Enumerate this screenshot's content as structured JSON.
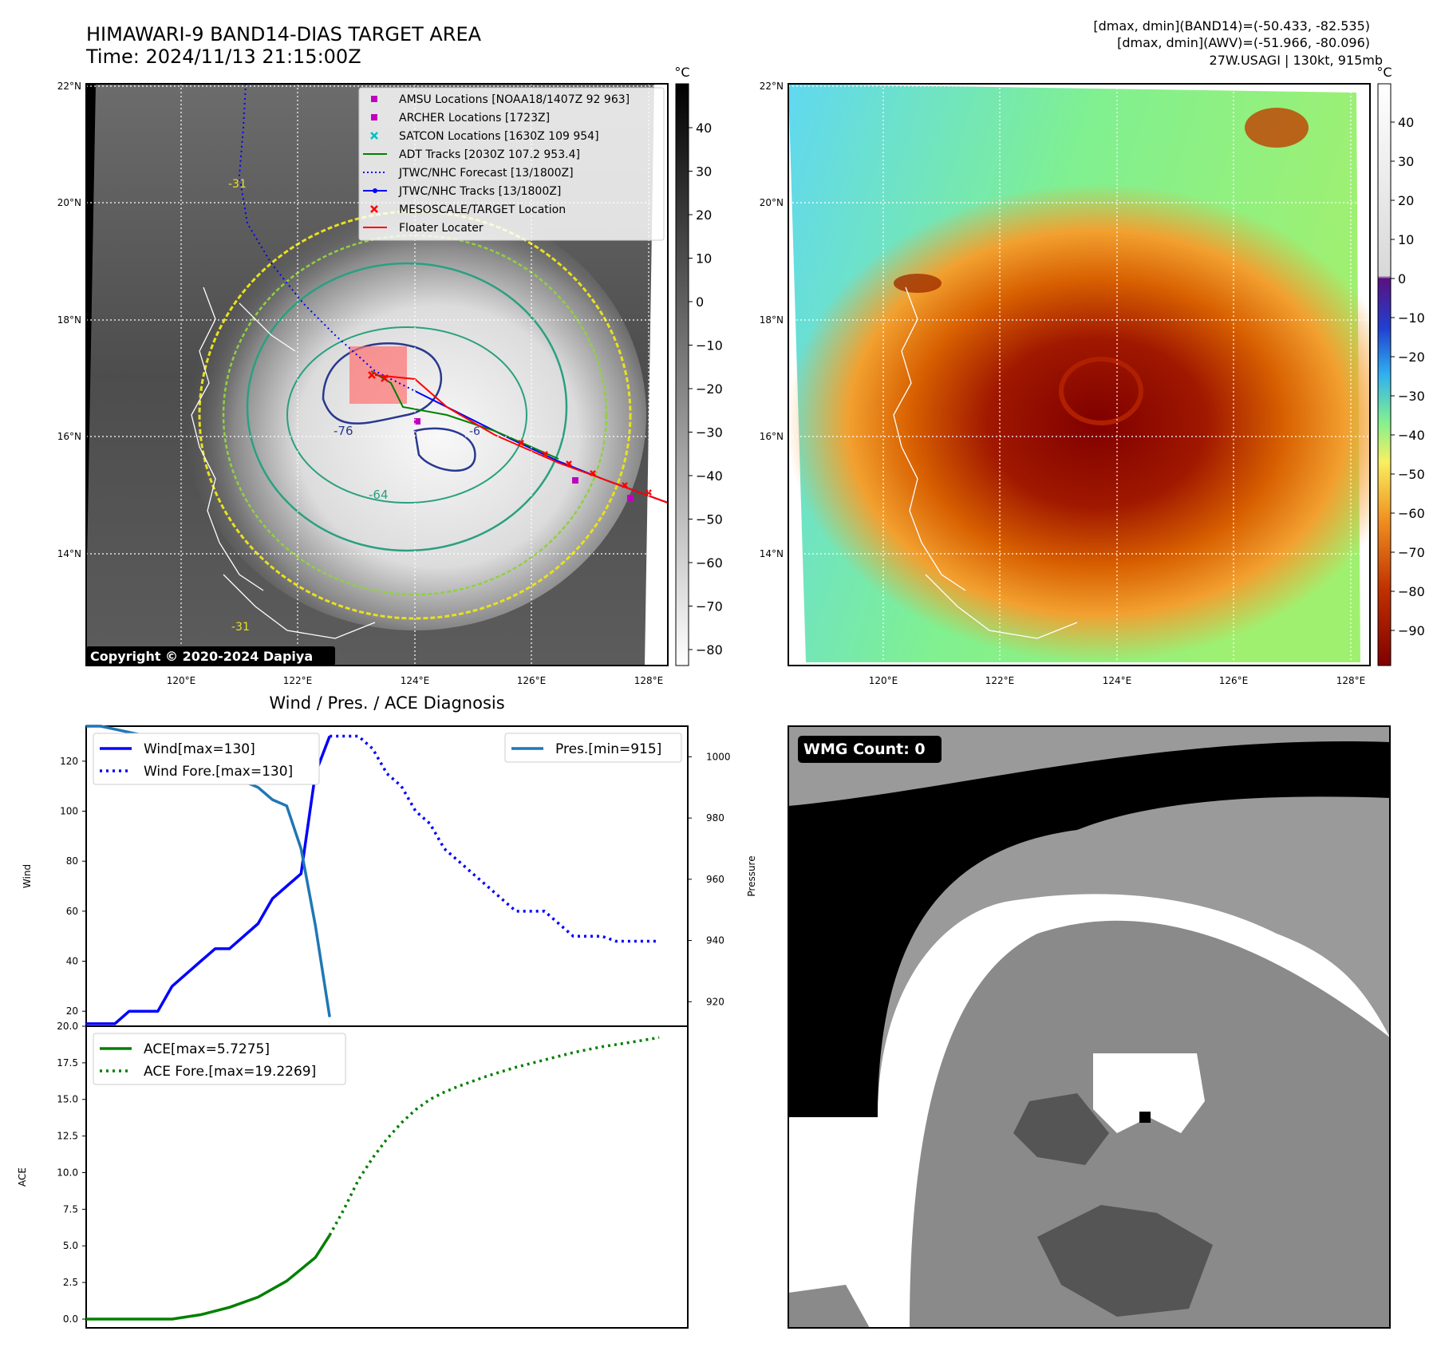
{
  "header": {
    "title_line1": "HIMAWARI-9 BAND14-DIAS TARGET AREA",
    "title_line2": "Time: 2024/11/13 21:15:00Z",
    "info_line1": "[dmax, dmin](BAND14)=(-50.433, -82.535)",
    "info_line2": "[dmax, dmin](AWV)=(-51.966, -80.096)",
    "info_line3": "27W.USAGI | 130kt, 915mb"
  },
  "map_axes": {
    "lat_labels": [
      "22°N",
      "20°N",
      "18°N",
      "16°N",
      "14°N"
    ],
    "lon_labels": [
      "120°E",
      "122°E",
      "124°E",
      "126°E",
      "128°E"
    ]
  },
  "panel_ir": {
    "unit": "°C",
    "colorbar_ticks": [
      "40",
      "30",
      "20",
      "10",
      "0",
      "−10",
      "−20",
      "−30",
      "−40",
      "−50",
      "−60",
      "−70",
      "−80"
    ],
    "copyright": "Copyright © 2020-2024 Dapiya",
    "contour_labels": [
      "-76",
      "-64",
      "-31",
      "-31",
      "-6"
    ],
    "legend": [
      {
        "label": "AMSU Locations [NOAA18/1407Z 92 963]",
        "color": "#c000c0",
        "marker": "square"
      },
      {
        "label": "ARCHER Locations [1723Z]",
        "color": "#c000c0",
        "marker": "square"
      },
      {
        "label": "SATCON Locations [1630Z 109 954]",
        "color": "#00c0c0",
        "marker": "x"
      },
      {
        "label": "ADT Tracks [2030Z 107.2 953.4]",
        "color": "#008000",
        "marker": "line"
      },
      {
        "label": "JTWC/NHC Forecast [13/1800Z]",
        "color": "#0000ff",
        "marker": "dotted"
      },
      {
        "label": "JTWC/NHC Tracks [13/1800Z]",
        "color": "#0000ff",
        "marker": "dotline"
      },
      {
        "label": "MESOSCALE/TARGET Location",
        "color": "#ff0000",
        "marker": "x"
      },
      {
        "label": "Floater Locater",
        "color": "#ff0000",
        "marker": "line"
      }
    ]
  },
  "panel_awv": {
    "unit": "°C",
    "colorbar_ticks": [
      "40",
      "30",
      "20",
      "10",
      "0",
      "−10",
      "−20",
      "−30",
      "−40",
      "−50",
      "−60",
      "−70",
      "−80",
      "−90"
    ]
  },
  "panel_wmg": {
    "badge": "WMG Count: 0"
  },
  "chart_data": [
    {
      "type": "line",
      "title": "Wind / Pres. / ACE Diagnosis",
      "ylabel": "Wind",
      "ylabel_right": "Pressure",
      "ylim": [
        14,
        134
      ],
      "ylim_right": [
        912,
        1010
      ],
      "yticks": [
        "20",
        "40",
        "60",
        "80",
        "100",
        "120"
      ],
      "yticks_right": [
        "920",
        "940",
        "960",
        "980",
        "1000"
      ],
      "x_range": [
        0,
        42
      ],
      "series": [
        {
          "name": "Wind[max=130]",
          "axis": "left",
          "style": "solid",
          "color": "#0000ff",
          "x": [
            0,
            2,
            3,
            4,
            5,
            6,
            7,
            8,
            9,
            10,
            11,
            12,
            13,
            14,
            15,
            16,
            17
          ],
          "values": [
            15,
            15,
            20,
            20,
            20,
            30,
            35,
            40,
            45,
            45,
            50,
            55,
            65,
            70,
            75,
            115,
            130
          ]
        },
        {
          "name": "Wind Fore.[max=130]",
          "axis": "left",
          "style": "dotted",
          "color": "#0000ff",
          "x": [
            17,
            18,
            19,
            20,
            21,
            22,
            23,
            24,
            25,
            26,
            27,
            28,
            29,
            30,
            31,
            32,
            33,
            34,
            35,
            36,
            37,
            38,
            39,
            40
          ],
          "values": [
            130,
            130,
            130,
            125,
            115,
            110,
            100,
            95,
            85,
            80,
            75,
            70,
            65,
            60,
            60,
            60,
            55,
            50,
            50,
            50,
            48,
            48,
            48,
            48
          ]
        },
        {
          "name": "Pres.[min=915]",
          "axis": "right",
          "style": "solid",
          "color": "#1f77b4",
          "x": [
            0,
            1,
            2,
            3,
            4,
            5,
            6,
            7,
            8,
            9,
            10,
            11,
            12,
            13,
            14,
            15,
            16,
            17
          ],
          "values": [
            1010,
            1010,
            1009,
            1008,
            1007,
            1006,
            1002,
            1000,
            997,
            994,
            992,
            992,
            990,
            986,
            984,
            970,
            945,
            915
          ]
        }
      ],
      "legend": [
        "Wind[max=130]",
        "Wind Fore.[max=130]",
        "Pres.[min=915]"
      ]
    },
    {
      "type": "line",
      "ylabel": "ACE",
      "ylim": [
        -0.6,
        20.0
      ],
      "yticks": [
        "0.0",
        "2.5",
        "5.0",
        "7.5",
        "10.0",
        "12.5",
        "15.0",
        "17.5",
        "20.0"
      ],
      "x_range": [
        0,
        42
      ],
      "series": [
        {
          "name": "ACE[max=5.7275]",
          "style": "solid",
          "color": "#008000",
          "x": [
            0,
            2,
            4,
            6,
            8,
            10,
            12,
            14,
            16,
            17
          ],
          "values": [
            0,
            0,
            0,
            0,
            0.3,
            0.8,
            1.5,
            2.6,
            4.2,
            5.7275
          ]
        },
        {
          "name": "ACE Fore.[max=19.2269]",
          "style": "dotted",
          "color": "#008000",
          "x": [
            17,
            18,
            19,
            20,
            21,
            22,
            23,
            24,
            25,
            26,
            28,
            30,
            32,
            34,
            36,
            38,
            40
          ],
          "values": [
            5.7275,
            7.5,
            9.5,
            11.0,
            12.3,
            13.4,
            14.3,
            15.0,
            15.5,
            15.9,
            16.6,
            17.2,
            17.7,
            18.2,
            18.6,
            18.9,
            19.2269
          ]
        }
      ],
      "legend": [
        "ACE[max=5.7275]",
        "ACE Fore.[max=19.2269]"
      ]
    }
  ]
}
